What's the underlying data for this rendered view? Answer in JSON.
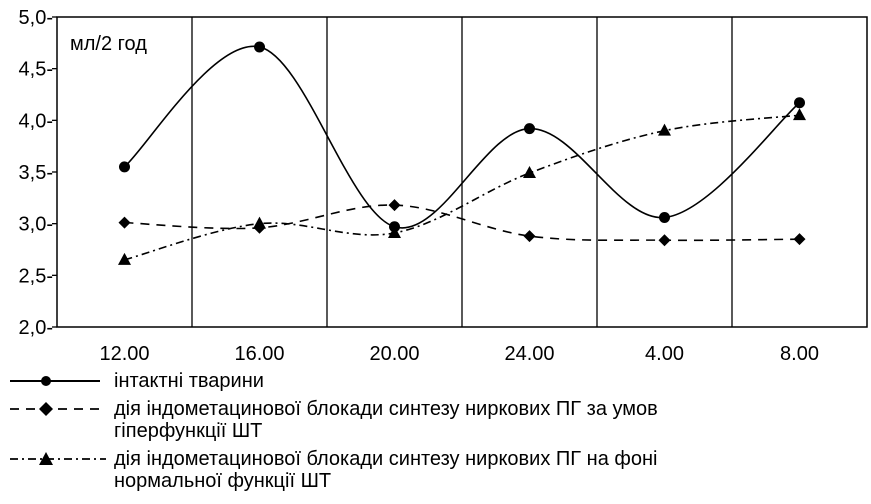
{
  "chart_data": {
    "type": "line",
    "unit_label": "мл/2 год",
    "categories": [
      "12.00",
      "16.00",
      "20.00",
      "24.00",
      "4.00",
      "8.00"
    ],
    "ylim": [
      2.0,
      5.0
    ],
    "y_ticks": [
      "2,0-",
      "2,5-",
      "3,0-",
      "3,5-",
      "4,0-",
      "4,5-",
      "5,0-"
    ],
    "y_tick_values": [
      2.0,
      2.5,
      3.0,
      3.5,
      4.0,
      4.5,
      5.0
    ],
    "grid": "vertical separators between categories",
    "legend_position": "bottom",
    "series": [
      {
        "name": "інтактні тварини",
        "values": [
          3.55,
          4.71,
          2.97,
          3.92,
          3.06,
          4.17
        ],
        "line_style": "solid",
        "marker": "circle",
        "color": "#000000"
      },
      {
        "name": "дія індометацинової блокади синтезу ниркових ПГ за умов\nгіперфункції ШТ",
        "values": [
          3.01,
          2.96,
          3.18,
          2.88,
          2.84,
          2.85
        ],
        "line_style": "dashed",
        "marker": "diamond",
        "color": "#000000"
      },
      {
        "name": "дія індометацинової блокади синтезу ниркових ПГ на фоні\nнормальної функції ШТ",
        "values": [
          2.65,
          3.0,
          2.91,
          3.49,
          3.9,
          4.05
        ],
        "line_style": "dash-dot",
        "marker": "triangle",
        "color": "#000000"
      }
    ]
  }
}
